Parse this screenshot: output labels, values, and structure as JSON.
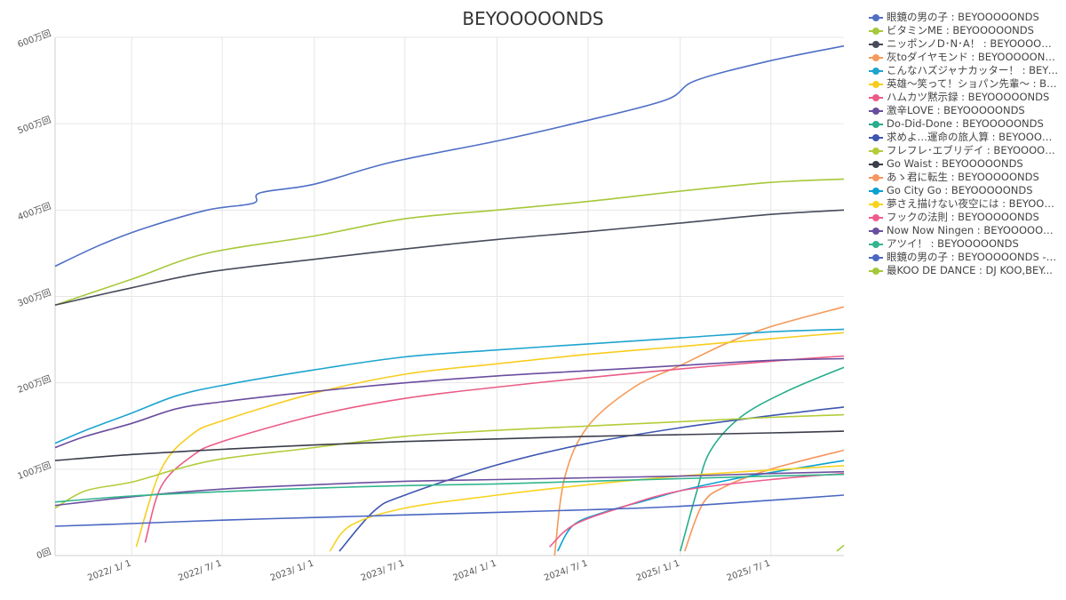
{
  "chart_data": {
    "type": "line",
    "title": "BEYOOOOONDS",
    "xlabel": "",
    "ylabel": "",
    "x_range": [
      "2021-08-01",
      "2025-11-24"
    ],
    "ylim": [
      0,
      6000000
    ],
    "x_ticks": [
      {
        "date": "2022-01-01",
        "label": "2022/ 1/ 1"
      },
      {
        "date": "2022-07-01",
        "label": "2022/ 7/ 1"
      },
      {
        "date": "2023-01-01",
        "label": "2023/ 1/ 1"
      },
      {
        "date": "2023-07-01",
        "label": "2023/ 7/ 1"
      },
      {
        "date": "2024-01-01",
        "label": "2024/ 1/ 1"
      },
      {
        "date": "2024-07-01",
        "label": "2024/ 7/ 1"
      },
      {
        "date": "2025-01-01",
        "label": "2025/ 1/ 1"
      },
      {
        "date": "2025-07-01",
        "label": "2025/ 7/ 1"
      }
    ],
    "y_ticks": [
      {
        "value": 0,
        "label": "0回"
      },
      {
        "value": 1000000,
        "label": "100万回"
      },
      {
        "value": 2000000,
        "label": "200万回"
      },
      {
        "value": 3000000,
        "label": "300万回"
      },
      {
        "value": 4000000,
        "label": "400万回"
      },
      {
        "value": 5000000,
        "label": "500万回"
      },
      {
        "value": 6000000,
        "label": "600万回"
      }
    ],
    "grid": true,
    "legend_position": "right",
    "series": [
      {
        "name": "眼鏡の男の子 : BEYOOOOONDS",
        "color": "#4f6fc6",
        "points": [
          [
            "2021-08-01",
            3350000
          ],
          [
            "2021-11-01",
            3600000
          ],
          [
            "2022-02-01",
            3800000
          ],
          [
            "2022-06-01",
            4000000
          ],
          [
            "2022-09-01",
            4080000
          ],
          [
            "2022-09-15",
            4200000
          ],
          [
            "2023-01-01",
            4300000
          ],
          [
            "2023-06-01",
            4550000
          ],
          [
            "2024-01-01",
            4800000
          ],
          [
            "2024-06-01",
            5000000
          ],
          [
            "2024-12-01",
            5270000
          ],
          [
            "2025-02-01",
            5500000
          ],
          [
            "2025-07-01",
            5730000
          ],
          [
            "2025-11-24",
            5900000
          ]
        ]
      },
      {
        "name": "ビタミンME : BEYOOOOONDS",
        "color": "#a6c83a",
        "points": [
          [
            "2021-08-01",
            2900000
          ],
          [
            "2022-01-01",
            3200000
          ],
          [
            "2022-06-01",
            3500000
          ],
          [
            "2023-01-01",
            3700000
          ],
          [
            "2023-07-01",
            3900000
          ],
          [
            "2024-01-01",
            4000000
          ],
          [
            "2024-07-01",
            4100000
          ],
          [
            "2025-01-01",
            4220000
          ],
          [
            "2025-07-01",
            4320000
          ],
          [
            "2025-11-24",
            4360000
          ]
        ]
      },
      {
        "name": "ニッポンノD･N･A！ : BEYOOOOONDS",
        "color": "#464a5a",
        "points": [
          [
            "2021-08-01",
            2900000
          ],
          [
            "2022-01-01",
            3100000
          ],
          [
            "2022-06-01",
            3280000
          ],
          [
            "2023-01-01",
            3430000
          ],
          [
            "2023-07-01",
            3550000
          ],
          [
            "2024-01-01",
            3660000
          ],
          [
            "2024-07-01",
            3750000
          ],
          [
            "2025-01-01",
            3850000
          ],
          [
            "2025-07-01",
            3950000
          ],
          [
            "2025-11-24",
            4000000
          ]
        ]
      },
      {
        "name": "灰toダイヤモンド : BEYOOOOONDS",
        "color": "#f59a58",
        "points": [
          [
            "2024-04-25",
            0
          ],
          [
            "2024-05-15",
            900000
          ],
          [
            "2024-07-01",
            1500000
          ],
          [
            "2024-10-01",
            1950000
          ],
          [
            "2025-01-01",
            2200000
          ],
          [
            "2025-04-01",
            2450000
          ],
          [
            "2025-07-01",
            2650000
          ],
          [
            "2025-11-24",
            2880000
          ]
        ]
      },
      {
        "name": "こんなハズジャナカッター！ : BEYOOOOONDS",
        "color": "#1ea4cf",
        "points": [
          [
            "2021-08-01",
            1300000
          ],
          [
            "2021-10-01",
            1450000
          ],
          [
            "2022-01-01",
            1650000
          ],
          [
            "2022-04-01",
            1850000
          ],
          [
            "2022-07-01",
            1970000
          ],
          [
            "2023-01-01",
            2150000
          ],
          [
            "2023-07-01",
            2300000
          ],
          [
            "2024-01-01",
            2380000
          ],
          [
            "2024-07-01",
            2450000
          ],
          [
            "2025-01-01",
            2520000
          ],
          [
            "2025-07-01",
            2590000
          ],
          [
            "2025-11-24",
            2620000
          ]
        ]
      },
      {
        "name": "英雄～笑って！ショパン先輩～ : BEYOOOOONDS",
        "color": "#f8cd1f",
        "points": [
          [
            "2022-01-10",
            100000
          ],
          [
            "2022-03-01",
            1000000
          ],
          [
            "2022-05-01",
            1400000
          ],
          [
            "2022-07-01",
            1560000
          ],
          [
            "2023-01-01",
            1880000
          ],
          [
            "2023-07-01",
            2100000
          ],
          [
            "2024-01-01",
            2220000
          ],
          [
            "2024-07-01",
            2330000
          ],
          [
            "2025-01-01",
            2420000
          ],
          [
            "2025-07-01",
            2510000
          ],
          [
            "2025-11-24",
            2580000
          ]
        ]
      },
      {
        "name": "ハムカツ黙示録 : BEYOOOOONDS",
        "color": "#ea5c86",
        "points": [
          [
            "2022-01-28",
            150000
          ],
          [
            "2022-03-01",
            800000
          ],
          [
            "2022-05-01",
            1150000
          ],
          [
            "2022-07-01",
            1320000
          ],
          [
            "2023-01-01",
            1620000
          ],
          [
            "2023-07-01",
            1820000
          ],
          [
            "2024-01-01",
            1950000
          ],
          [
            "2024-07-01",
            2060000
          ],
          [
            "2025-01-01",
            2160000
          ],
          [
            "2025-07-01",
            2250000
          ],
          [
            "2025-11-24",
            2310000
          ]
        ]
      },
      {
        "name": "激辛LOVE : BEYOOOOONDS",
        "color": "#6a4d9e",
        "points": [
          [
            "2021-08-01",
            1250000
          ],
          [
            "2021-10-01",
            1380000
          ],
          [
            "2022-01-01",
            1530000
          ],
          [
            "2022-04-01",
            1700000
          ],
          [
            "2022-07-01",
            1780000
          ],
          [
            "2023-01-01",
            1900000
          ],
          [
            "2023-07-01",
            2000000
          ],
          [
            "2024-01-01",
            2080000
          ],
          [
            "2024-07-01",
            2140000
          ],
          [
            "2025-01-01",
            2200000
          ],
          [
            "2025-07-01",
            2260000
          ],
          [
            "2025-11-24",
            2280000
          ]
        ]
      },
      {
        "name": "Do-Did-Done : BEYOOOOONDS",
        "color": "#27ad8c",
        "points": [
          [
            "2025-01-01",
            50000
          ],
          [
            "2025-02-01",
            700000
          ],
          [
            "2025-03-01",
            1200000
          ],
          [
            "2025-05-01",
            1600000
          ],
          [
            "2025-08-01",
            1900000
          ],
          [
            "2025-11-24",
            2180000
          ]
        ]
      },
      {
        "name": "求めよ…運命の旅人算 : BEYOOOOONDS",
        "color": "#3d55b0",
        "points": [
          [
            "2023-02-20",
            50000
          ],
          [
            "2023-05-01",
            520000
          ],
          [
            "2023-07-01",
            700000
          ],
          [
            "2024-01-01",
            1050000
          ],
          [
            "2024-07-01",
            1300000
          ],
          [
            "2025-01-01",
            1480000
          ],
          [
            "2025-07-01",
            1620000
          ],
          [
            "2025-11-24",
            1720000
          ]
        ]
      },
      {
        "name": "フレフレ･エブリデイ : BEYOOOOONDS",
        "color": "#b3cc3a",
        "points": [
          [
            "2021-08-01",
            550000
          ],
          [
            "2021-10-01",
            750000
          ],
          [
            "2022-01-01",
            850000
          ],
          [
            "2022-04-01",
            1000000
          ],
          [
            "2022-07-01",
            1120000
          ],
          [
            "2023-01-01",
            1250000
          ],
          [
            "2023-07-01",
            1380000
          ],
          [
            "2024-01-01",
            1450000
          ],
          [
            "2024-07-01",
            1500000
          ],
          [
            "2025-01-01",
            1550000
          ],
          [
            "2025-07-01",
            1600000
          ],
          [
            "2025-11-24",
            1630000
          ]
        ]
      },
      {
        "name": "Go Waist : BEYOOOOONDS",
        "color": "#3a3d4a",
        "points": [
          [
            "2021-08-01",
            1100000
          ],
          [
            "2022-01-01",
            1170000
          ],
          [
            "2022-07-01",
            1230000
          ],
          [
            "2023-01-01",
            1280000
          ],
          [
            "2023-07-01",
            1320000
          ],
          [
            "2024-01-01",
            1350000
          ],
          [
            "2024-07-01",
            1380000
          ],
          [
            "2025-01-01",
            1400000
          ],
          [
            "2025-07-01",
            1420000
          ],
          [
            "2025-11-24",
            1440000
          ]
        ]
      },
      {
        "name": "あゝ君に転生 : BEYOOOOONDS",
        "color": "#f6955d",
        "points": [
          [
            "2025-01-10",
            50000
          ],
          [
            "2025-02-15",
            600000
          ],
          [
            "2025-04-01",
            800000
          ],
          [
            "2025-07-01",
            1000000
          ],
          [
            "2025-11-24",
            1220000
          ]
        ]
      },
      {
        "name": "Go City Go : BEYOOOOONDS",
        "color": "#0aa1d2",
        "points": [
          [
            "2024-05-01",
            50000
          ],
          [
            "2024-06-01",
            350000
          ],
          [
            "2024-08-01",
            500000
          ],
          [
            "2024-11-01",
            650000
          ],
          [
            "2025-01-01",
            750000
          ],
          [
            "2025-05-01",
            900000
          ],
          [
            "2025-11-24",
            1100000
          ]
        ]
      },
      {
        "name": "夢さえ描けない夜空には : BEYOOOOONDS",
        "color": "#f8d320",
        "points": [
          [
            "2023-02-01",
            50000
          ],
          [
            "2023-03-15",
            350000
          ],
          [
            "2023-07-01",
            550000
          ],
          [
            "2024-01-01",
            700000
          ],
          [
            "2024-07-01",
            820000
          ],
          [
            "2025-01-01",
            920000
          ],
          [
            "2025-07-01",
            990000
          ],
          [
            "2025-11-24",
            1040000
          ]
        ]
      },
      {
        "name": "フックの法則 : BEYOOOOONDS",
        "color": "#ee5c8c",
        "points": [
          [
            "2024-04-15",
            100000
          ],
          [
            "2024-06-01",
            350000
          ],
          [
            "2024-09-01",
            550000
          ],
          [
            "2025-01-01",
            750000
          ],
          [
            "2025-07-01",
            880000
          ],
          [
            "2025-11-24",
            950000
          ]
        ]
      },
      {
        "name": "Now Now Ningen : BEYOOOOONDS",
        "color": "#6b4f9f",
        "points": [
          [
            "2021-08-01",
            580000
          ],
          [
            "2022-01-01",
            680000
          ],
          [
            "2022-07-01",
            770000
          ],
          [
            "2023-01-01",
            820000
          ],
          [
            "2023-07-01",
            860000
          ],
          [
            "2024-01-01",
            880000
          ],
          [
            "2024-07-01",
            900000
          ],
          [
            "2025-01-01",
            920000
          ],
          [
            "2025-07-01",
            950000
          ],
          [
            "2025-11-24",
            970000
          ]
        ]
      },
      {
        "name": "アツイ！ : BEYOOOOONDS",
        "color": "#33b58e",
        "points": [
          [
            "2021-08-01",
            620000
          ],
          [
            "2022-01-01",
            690000
          ],
          [
            "2022-07-01",
            740000
          ],
          [
            "2023-01-01",
            780000
          ],
          [
            "2023-07-01",
            810000
          ],
          [
            "2024-01-01",
            830000
          ],
          [
            "2024-07-01",
            860000
          ],
          [
            "2025-01-01",
            890000
          ],
          [
            "2025-07-01",
            920000
          ],
          [
            "2025-11-24",
            940000
          ]
        ]
      },
      {
        "name": "眼鏡の男の子 : BEYOOOOONDS - P...",
        "color": "#4a66c2",
        "points": [
          [
            "2021-08-01",
            340000
          ],
          [
            "2022-01-01",
            370000
          ],
          [
            "2022-07-01",
            410000
          ],
          [
            "2023-01-01",
            440000
          ],
          [
            "2023-07-01",
            470000
          ],
          [
            "2024-01-01",
            500000
          ],
          [
            "2024-07-01",
            530000
          ],
          [
            "2025-01-01",
            570000
          ],
          [
            "2025-07-01",
            640000
          ],
          [
            "2025-11-24",
            700000
          ]
        ]
      },
      {
        "name": "最KOO DE DANCE : DJ KOO,BEY...",
        "color": "#a2c93a",
        "points": [
          [
            "2025-11-10",
            50000
          ],
          [
            "2025-11-24",
            120000
          ]
        ]
      }
    ]
  }
}
